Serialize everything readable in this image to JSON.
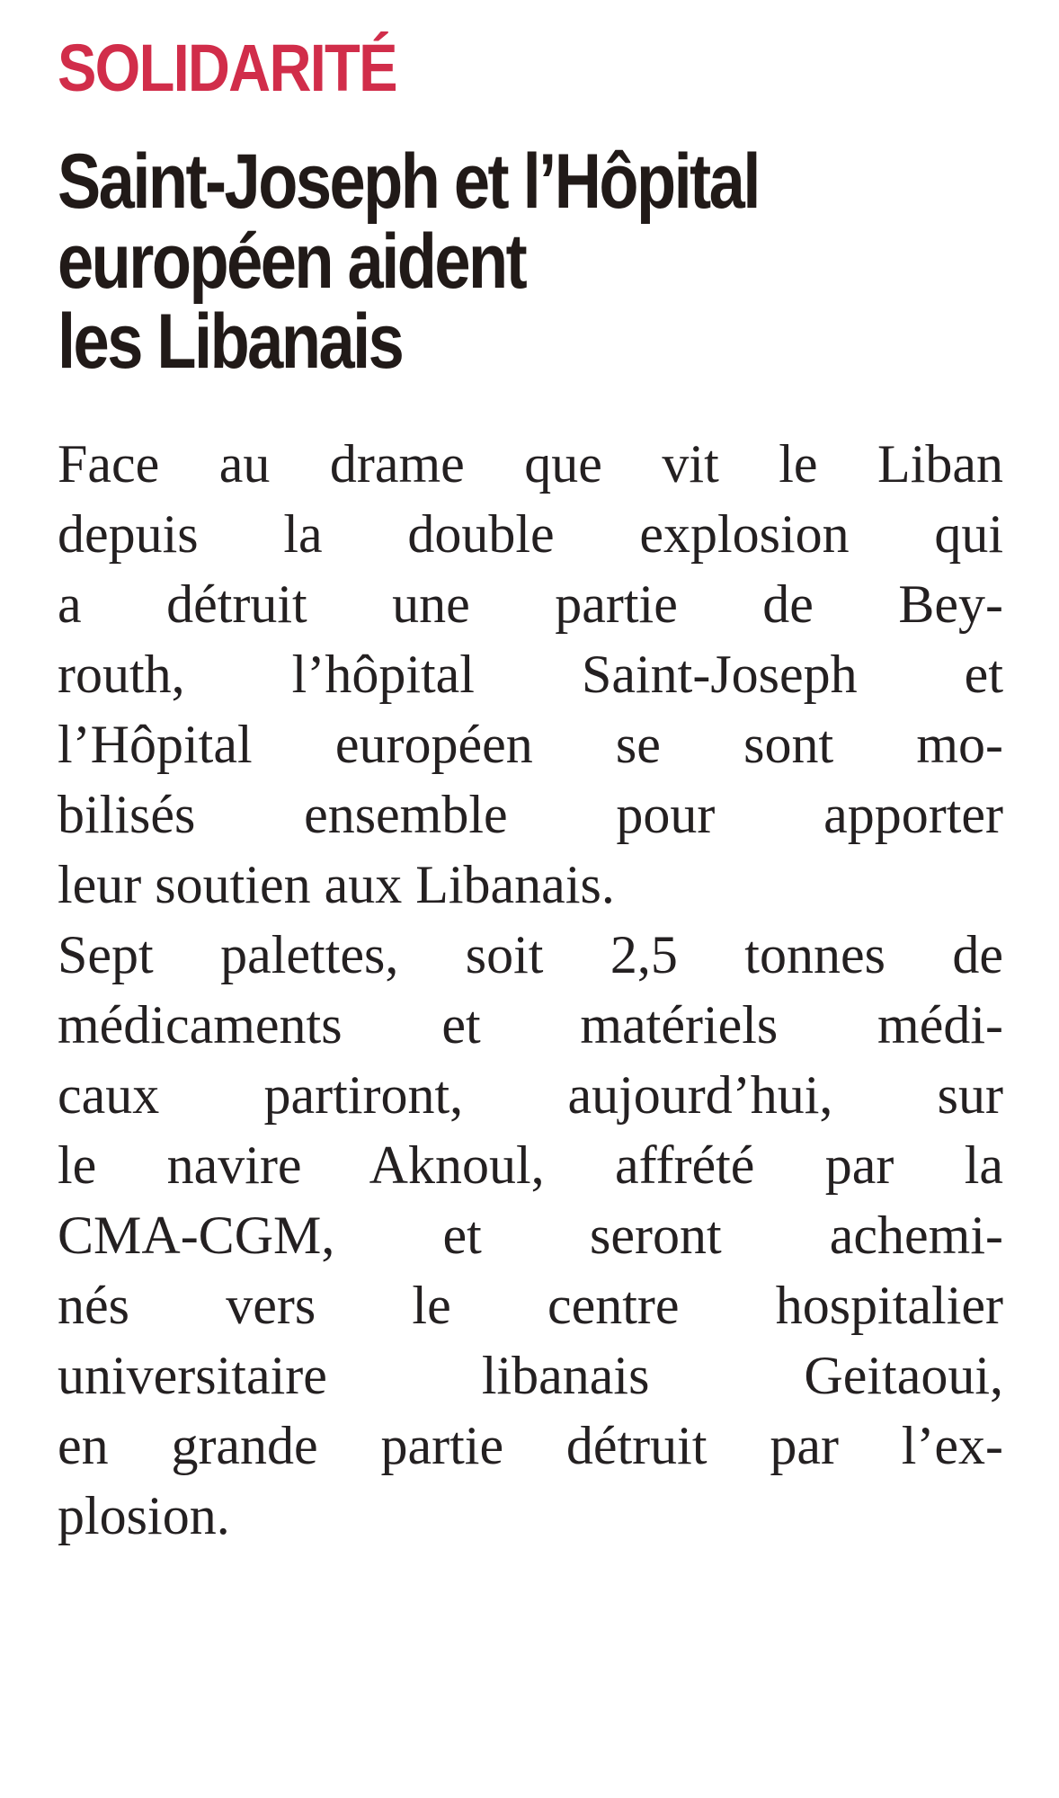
{
  "article": {
    "kicker": "SOLIDARITÉ",
    "headline_lines": [
      "Saint-Joseph et l’Hôpital",
      "européen aident",
      "les Libanais"
    ],
    "paragraphs": [
      {
        "lines": [
          "Face au drame que vit le Liban",
          "depuis la double explosion qui",
          "a détruit une partie de Bey-",
          "routh, l’hôpital Saint-Joseph et",
          "l’Hôpital européen se sont mo-",
          "bilisés ensemble pour apporter",
          "leur soutien aux Libanais."
        ]
      },
      {
        "lines": [
          "Sept palettes, soit 2,5 tonnes de",
          "médicaments et matériels médi-",
          "caux partiront, aujourd’hui, sur",
          "le navire Aknoul, affrété par la",
          "CMA-CGM, et seront achemi-",
          "nés vers le centre hospitalier",
          "universitaire libanais Geitaoui,",
          "en grande partie détruit par l’ex-",
          "plosion."
        ]
      }
    ],
    "colors": {
      "kicker": "#d12d4a",
      "headline": "#211a18",
      "body_text": "#242021",
      "background": "#ffffff"
    }
  }
}
